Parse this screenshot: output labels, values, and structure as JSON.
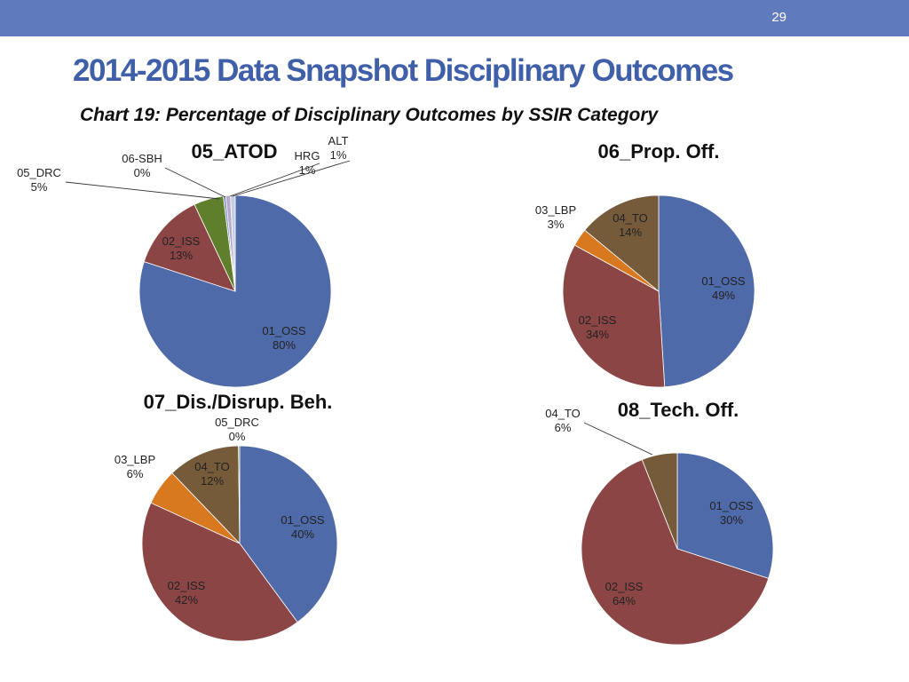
{
  "slide": {
    "number": "29"
  },
  "header": {
    "title": "2014-2015 Data Snapshot Disciplinary Outcomes",
    "subtitle": "Chart 19: Percentage of Disciplinary Outcomes by SSIR Category"
  },
  "colors": {
    "topbar": "#5f7bbd",
    "title": "#3f5fa8",
    "01_OSS": "#4f6aa8",
    "02_ISS": "#8c4545",
    "03_LBP": "#d8781f",
    "04_TO": "#765b3b",
    "05_DRC": "#5f7f2c",
    "06-SBH": "#7b8fc0",
    "HRG": "#b7a9cb",
    "ALT": "#c5cde4"
  },
  "chart_data": [
    {
      "type": "pie",
      "title": "05_ATOD",
      "slices": [
        {
          "label": "01_OSS",
          "value": 80,
          "display": "80%"
        },
        {
          "label": "02_ISS",
          "value": 13,
          "display": "13%"
        },
        {
          "label": "05_DRC",
          "value": 5,
          "display": "5%"
        },
        {
          "label": "06-SBH",
          "value": 0.4,
          "display": "0%"
        },
        {
          "label": "HRG",
          "value": 0.8,
          "display": "1%"
        },
        {
          "label": "ALT",
          "value": 0.8,
          "display": "1%"
        }
      ]
    },
    {
      "type": "pie",
      "title": "06_Prop. Off.",
      "slices": [
        {
          "label": "01_OSS",
          "value": 49,
          "display": "49%"
        },
        {
          "label": "02_ISS",
          "value": 34,
          "display": "34%"
        },
        {
          "label": "03_LBP",
          "value": 3,
          "display": "3%"
        },
        {
          "label": "04_TO",
          "value": 14,
          "display": "14%"
        }
      ]
    },
    {
      "type": "pie",
      "title": "07_Dis./Disrup. Beh.",
      "slices": [
        {
          "label": "01_OSS",
          "value": 40,
          "display": "40%"
        },
        {
          "label": "02_ISS",
          "value": 42,
          "display": "42%"
        },
        {
          "label": "03_LBP",
          "value": 6,
          "display": "6%"
        },
        {
          "label": "04_TO",
          "value": 12,
          "display": "12%"
        },
        {
          "label": "05_DRC",
          "value": 0.2,
          "display": "0%"
        }
      ]
    },
    {
      "type": "pie",
      "title": "08_Tech. Off.",
      "slices": [
        {
          "label": "01_OSS",
          "value": 30,
          "display": "30%"
        },
        {
          "label": "02_ISS",
          "value": 64,
          "display": "64%"
        },
        {
          "label": "04_TO",
          "value": 6,
          "display": "6%"
        }
      ]
    }
  ]
}
